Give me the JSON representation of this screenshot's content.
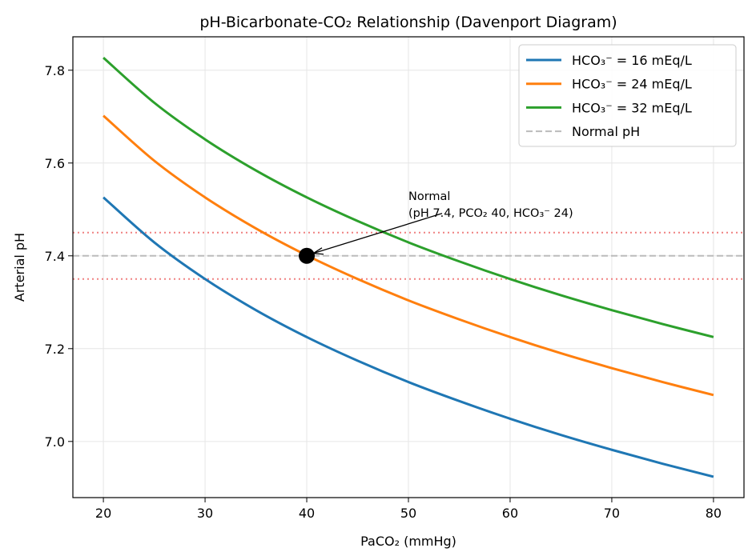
{
  "chart_data": {
    "type": "line",
    "title": "pH-Bicarbonate-CO₂ Relationship (Davenport Diagram)",
    "xlabel": "PaCO₂ (mmHg)",
    "ylabel": "Arterial pH",
    "xlim": [
      17,
      83
    ],
    "ylim": [
      6.879,
      7.872
    ],
    "xticks": [
      20,
      30,
      40,
      50,
      60,
      70,
      80
    ],
    "yticks": [
      7.0,
      7.2,
      7.4,
      7.6,
      7.8
    ],
    "ytick_labels": [
      "7.0",
      "7.2",
      "7.4",
      "7.6",
      "7.8"
    ],
    "grid": true,
    "legend_position": "top-right",
    "x": [
      20,
      25,
      30,
      35,
      40,
      45,
      50,
      55,
      60,
      65,
      70,
      75,
      80
    ],
    "series": [
      {
        "name": "HCO₃⁻ = 16 mEq/L",
        "color": "#1f77b4",
        "values": [
          7.526,
          7.429,
          7.35,
          7.283,
          7.225,
          7.174,
          7.128,
          7.087,
          7.049,
          7.014,
          6.982,
          6.952,
          6.924
        ]
      },
      {
        "name": "HCO₃⁻ = 24 mEq/L",
        "color": "#ff7f0e",
        "values": [
          7.702,
          7.605,
          7.526,
          7.459,
          7.401,
          7.35,
          7.304,
          7.263,
          7.225,
          7.19,
          7.158,
          7.128,
          7.1
        ]
      },
      {
        "name": "HCO₃⁻ = 32 mEq/L",
        "color": "#2ca02c",
        "values": [
          7.827,
          7.73,
          7.651,
          7.584,
          7.526,
          7.475,
          7.429,
          7.388,
          7.35,
          7.315,
          7.283,
          7.253,
          7.225
        ]
      }
    ],
    "reference_lines": [
      {
        "name": "Normal pH",
        "y": 7.4,
        "color": "#bbbbbb",
        "style": "dashed",
        "in_legend": true
      },
      {
        "y": 7.35,
        "color": "#f08080",
        "style": "dotted",
        "in_legend": false
      },
      {
        "y": 7.45,
        "color": "#f08080",
        "style": "dotted",
        "in_legend": false
      }
    ],
    "marker": {
      "x": 40,
      "y": 7.4,
      "color": "#000000"
    },
    "annotation": {
      "lines": [
        "Normal",
        "(pH 7.4, PCO₂ 40, HCO₃⁻ 24)"
      ],
      "x": 50,
      "y": 7.5
    }
  }
}
